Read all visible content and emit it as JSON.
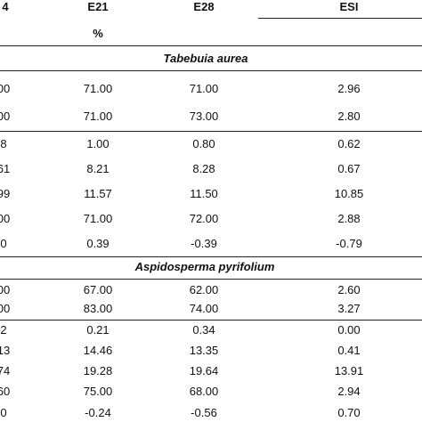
{
  "header": {
    "col0": "4",
    "col1": "E21",
    "col2": "E28",
    "col3": "ESI",
    "unit": "%"
  },
  "sections": [
    {
      "species": "Tabebuia aurea",
      "rows": [
        [
          "00",
          "71.00",
          "71.00",
          "2.96"
        ],
        [
          "00",
          "71.00",
          "73.00",
          "2.80"
        ],
        [
          "8",
          "1.00",
          "0.80",
          "0.62"
        ],
        [
          "61",
          "8.21",
          "8.28",
          "0.67"
        ],
        [
          "99",
          "11.57",
          "11.50",
          "10.85"
        ],
        [
          "00",
          "71.00",
          "72.00",
          "2.88"
        ],
        [
          "0",
          "0.39",
          "-0.39",
          "-0.79"
        ]
      ]
    },
    {
      "species": "Aspidosperma pyrifolium",
      "rows": [
        [
          "00",
          "67.00",
          "62.00",
          "2.60"
        ],
        [
          "00",
          "83.00",
          "74.00",
          "3.27"
        ],
        [
          "2",
          "0.21",
          "0.34",
          "0.00"
        ],
        [
          "13",
          "14.46",
          "13.35",
          "0.41"
        ],
        [
          "74",
          "19.28",
          "19.64",
          "13.91"
        ],
        [
          "60",
          "75.00",
          "68.00",
          "2.94"
        ],
        [
          "0",
          "-0.24",
          "-0.56",
          "0.70"
        ]
      ]
    }
  ]
}
